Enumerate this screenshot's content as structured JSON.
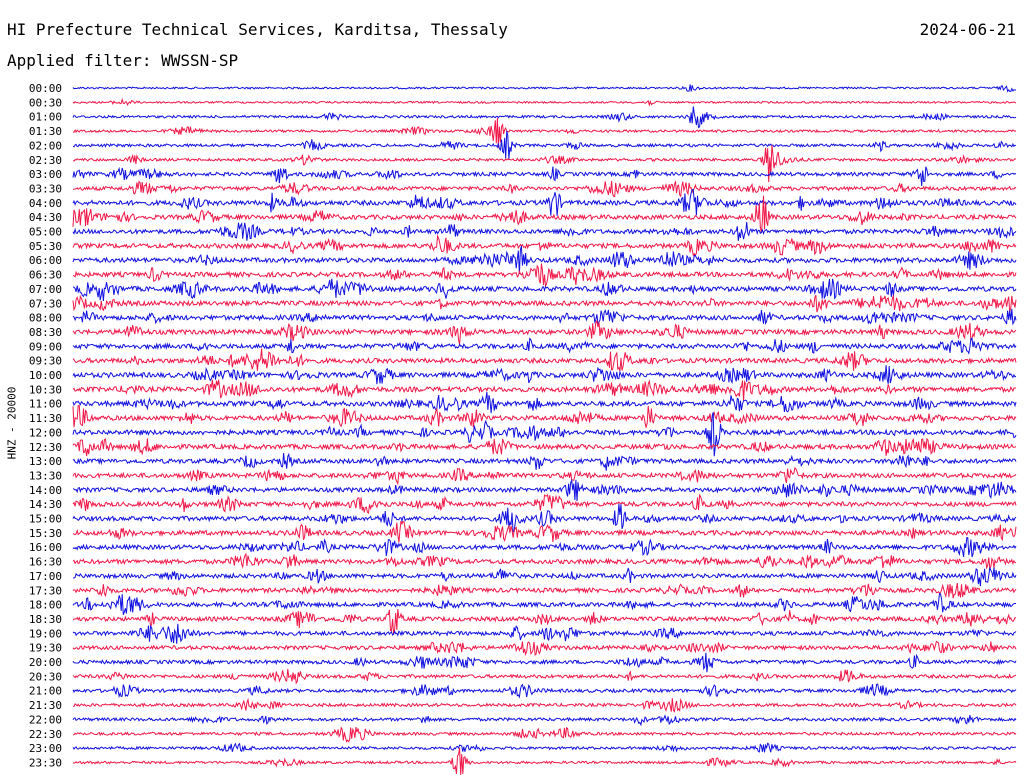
{
  "header": {
    "title": "HI Prefecture Technical Services, Karditsa, Thessaly",
    "date": "2024-06-21",
    "filter": "Applied filter: WWSSN-SP"
  },
  "colors": {
    "blue": "#1010e0",
    "red": "#f01848"
  },
  "chart_data": {
    "type": "line",
    "ylabel": "HNZ - 20000",
    "rows": [
      "00:00",
      "00:30",
      "01:00",
      "01:30",
      "02:00",
      "02:30",
      "03:00",
      "03:30",
      "04:00",
      "04:30",
      "05:00",
      "05:30",
      "06:00",
      "06:30",
      "07:00",
      "07:30",
      "08:00",
      "08:30",
      "09:00",
      "09:30",
      "10:00",
      "10:30",
      "11:00",
      "11:30",
      "12:00",
      "12:30",
      "13:00",
      "13:30",
      "14:00",
      "14:30",
      "15:00",
      "15:30",
      "16:00",
      "16:30",
      "17:00",
      "17:30",
      "18:00",
      "18:30",
      "19:00",
      "19:30",
      "20:00",
      "20:30",
      "21:00",
      "21:30",
      "22:00",
      "22:30",
      "23:00",
      "23:30"
    ],
    "row_colors": [
      "blue",
      "red"
    ],
    "activity": [
      0.15,
      0.15,
      0.3,
      0.3,
      0.4,
      0.35,
      0.6,
      0.65,
      0.85,
      0.8,
      0.75,
      0.85,
      0.85,
      0.85,
      0.9,
      0.85,
      0.85,
      0.85,
      0.85,
      0.85,
      0.9,
      0.9,
      0.9,
      0.85,
      0.85,
      0.85,
      0.8,
      0.8,
      0.8,
      0.8,
      0.8,
      0.85,
      0.8,
      0.8,
      0.75,
      0.75,
      0.75,
      0.75,
      0.7,
      0.65,
      0.6,
      0.55,
      0.5,
      0.45,
      0.45,
      0.4,
      0.35,
      0.3
    ],
    "events": [
      {
        "row": 2,
        "t": 0.66,
        "amp": 0.7
      },
      {
        "row": 3,
        "t": 0.45,
        "amp": 1.2
      },
      {
        "row": 4,
        "t": 0.46,
        "amp": 1.0
      },
      {
        "row": 5,
        "t": 0.74,
        "amp": 1.9
      },
      {
        "row": 6,
        "t": 0.22,
        "amp": 0.9
      },
      {
        "row": 6,
        "t": 0.9,
        "amp": 0.9
      },
      {
        "row": 8,
        "t": 0.51,
        "amp": 1.1
      },
      {
        "row": 9,
        "t": 0.73,
        "amp": 1.2
      },
      {
        "row": 10,
        "t": 0.71,
        "amp": 1.0
      },
      {
        "row": 14,
        "t": 0.03,
        "amp": 0.8
      },
      {
        "row": 22,
        "t": 0.44,
        "amp": 0.6
      },
      {
        "row": 23,
        "t": 0.61,
        "amp": 0.8
      },
      {
        "row": 24,
        "t": 0.68,
        "amp": 1.6
      },
      {
        "row": 30,
        "t": 0.58,
        "amp": 1.0
      },
      {
        "row": 37,
        "t": 0.34,
        "amp": 1.2
      },
      {
        "row": 47,
        "t": 0.41,
        "amp": 1.4
      }
    ]
  }
}
